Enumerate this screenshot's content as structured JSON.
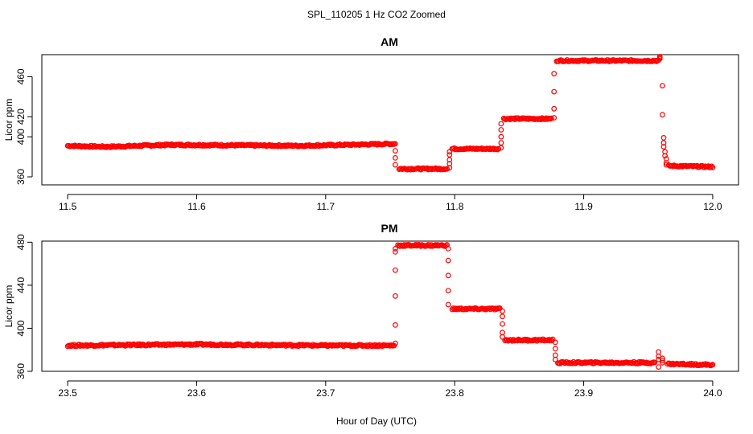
{
  "figure": {
    "suptitle": "SPL_110205  1 Hz CO2 Zoomed",
    "xlabel": "Hour of Day (UTC)"
  },
  "chart_data": [
    {
      "type": "scatter",
      "title": "AM",
      "xlabel": "",
      "ylabel": "Licor ppm",
      "xlim": [
        11.5,
        12.0
      ],
      "ylim": [
        352,
        482
      ],
      "xticks": [
        "11.5",
        "11.6",
        "11.7",
        "11.8",
        "11.9",
        "12.0"
      ],
      "yticks": [
        "360",
        "400",
        "420",
        "460"
      ],
      "marker": "open-circle",
      "color": "#ff0000",
      "segments": [
        {
          "x0": 11.5,
          "x1": 11.53,
          "y0": 391,
          "y1": 390
        },
        {
          "x0": 11.53,
          "x1": 11.58,
          "y0": 390,
          "y1": 392
        },
        {
          "x0": 11.58,
          "x1": 11.68,
          "y0": 392,
          "y1": 391
        },
        {
          "x0": 11.68,
          "x1": 11.753,
          "y0": 391,
          "y1": 393
        },
        {
          "x0": 11.757,
          "x1": 11.794,
          "y0": 368,
          "y1": 368
        },
        {
          "x0": 11.798,
          "x1": 11.834,
          "y0": 388,
          "y1": 388
        },
        {
          "x0": 11.838,
          "x1": 11.875,
          "y0": 418,
          "y1": 418
        },
        {
          "x0": 11.879,
          "x1": 11.958,
          "y0": 476,
          "y1": 476
        },
        {
          "x0": 11.966,
          "x1": 12.0,
          "y0": 371,
          "y1": 370
        }
      ],
      "transitions": [
        {
          "x": 11.754,
          "values": [
            393,
            386,
            379,
            372
          ]
        },
        {
          "x": 11.796,
          "values": [
            369,
            373,
            377,
            382,
            385
          ]
        },
        {
          "x": 11.836,
          "values": [
            389,
            394,
            400,
            407,
            413
          ]
        },
        {
          "x": 11.877,
          "values": [
            419,
            428,
            445,
            463
          ]
        },
        {
          "x": 11.959,
          "values": [
            479,
            480,
            478
          ]
        },
        {
          "x": 11.961,
          "values": [
            451,
            422
          ]
        },
        {
          "x": 11.962,
          "values": [
            399,
            394,
            390
          ]
        },
        {
          "x": 11.963,
          "values": [
            385,
            381
          ]
        },
        {
          "x": 11.964,
          "values": [
            378,
            374,
            372
          ]
        }
      ]
    },
    {
      "type": "scatter",
      "title": "PM",
      "xlabel": "",
      "ylabel": "Licor ppm",
      "xlim": [
        23.5,
        24.0
      ],
      "ylim": [
        360,
        481
      ],
      "xticks": [
        "23.5",
        "23.6",
        "23.7",
        "23.8",
        "23.9",
        "24.0"
      ],
      "yticks": [
        "360",
        "400",
        "440",
        "480"
      ],
      "marker": "open-circle",
      "color": "#ff0000",
      "segments": [
        {
          "x0": 23.5,
          "x1": 23.6,
          "y0": 384,
          "y1": 385
        },
        {
          "x0": 23.6,
          "x1": 23.7,
          "y0": 385,
          "y1": 384
        },
        {
          "x0": 23.7,
          "x1": 23.753,
          "y0": 384,
          "y1": 384
        },
        {
          "x0": 23.756,
          "x1": 23.794,
          "y0": 477,
          "y1": 477
        },
        {
          "x0": 23.798,
          "x1": 23.835,
          "y0": 418,
          "y1": 418
        },
        {
          "x0": 23.839,
          "x1": 23.876,
          "y0": 389,
          "y1": 389
        },
        {
          "x0": 23.88,
          "x1": 23.955,
          "y0": 368,
          "y1": 368
        },
        {
          "x0": 23.965,
          "x1": 24.0,
          "y0": 367,
          "y1": 366
        }
      ],
      "transitions": [
        {
          "x": 23.754,
          "values": [
            386,
            403,
            430,
            454,
            471,
            474
          ]
        },
        {
          "x": 23.795,
          "values": [
            474,
            463,
            449,
            435,
            422
          ]
        },
        {
          "x": 23.837,
          "values": [
            416,
            411,
            404,
            396,
            392
          ]
        },
        {
          "x": 23.878,
          "values": [
            387,
            381,
            375,
            371
          ]
        },
        {
          "x": 23.958,
          "values": [
            378,
            374,
            371,
            364
          ]
        },
        {
          "x": 23.961,
          "values": [
            372,
            370,
            368
          ]
        }
      ]
    }
  ]
}
